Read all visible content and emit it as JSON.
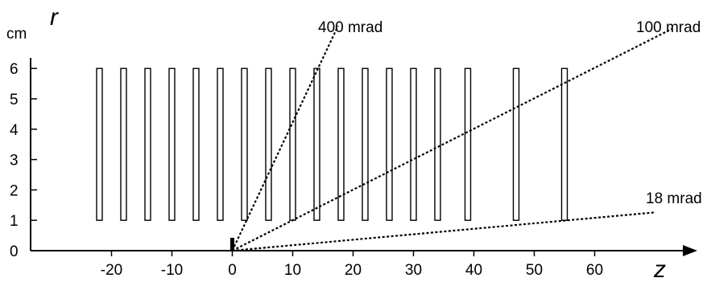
{
  "axes": {
    "r_label": "r",
    "z_label": "z",
    "r_unit": "cm",
    "r_ticks": [
      "0",
      "1",
      "2",
      "3",
      "4",
      "5",
      "6"
    ],
    "z_ticks": [
      "-20",
      "-10",
      "0",
      "10",
      "20",
      "30",
      "40",
      "50",
      "60"
    ]
  },
  "detector_planes": {
    "r_inner": 1,
    "r_outer": 6,
    "z_positions": [
      -22,
      -18,
      -14,
      -10,
      -6,
      -2,
      2,
      6,
      10,
      14,
      18,
      22,
      26,
      30,
      34,
      39,
      47,
      55
    ]
  },
  "lines": [
    {
      "label": "400 mrad",
      "angle_mrad": 400
    },
    {
      "label": "100 mrad",
      "angle_mrad": 100
    },
    {
      "label": "18 mrad",
      "angle_mrad": 18
    }
  ],
  "colors": {
    "ink": "#000000",
    "background": "#ffffff"
  }
}
